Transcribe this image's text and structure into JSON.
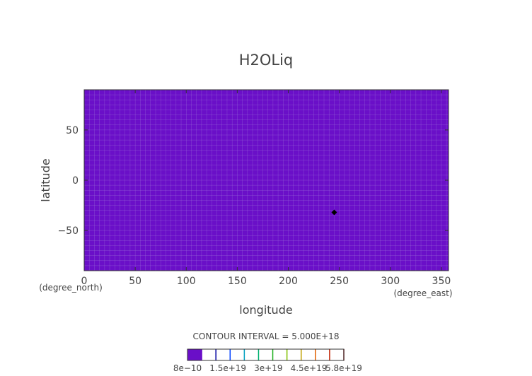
{
  "chart_data": {
    "type": "heatmap",
    "title": "H2OLiq",
    "xlabel": "longitude",
    "ylabel": "latitude",
    "x_units": "(degree_east)",
    "y_units": "(degree_north)",
    "xlim": [
      0,
      357
    ],
    "ylim": [
      -90,
      90
    ],
    "x_ticks": [
      "0",
      "50",
      "100",
      "150",
      "200",
      "250",
      "300",
      "350"
    ],
    "x_tick_values": [
      0,
      50,
      100,
      150,
      200,
      250,
      300,
      350
    ],
    "y_ticks": [
      "50",
      "0",
      "-50"
    ],
    "y_tick_values": [
      50,
      0,
      -50
    ],
    "field_value": 8e-10,
    "field_color": "#6a0fc8",
    "gridline_color": "#a07ad8",
    "point": {
      "x": 245,
      "y": -32
    },
    "contour_interval_text": "CONTOUR INTERVAL = 5.000E+18",
    "colorbar": {
      "labels": [
        "8e−10",
        "1.5e+19",
        "3e+19",
        "4.5e+19",
        "5.8e+19"
      ],
      "label_values": [
        8e-10,
        1.5e+19,
        3e+19,
        4.5e+19,
        5.8e+19
      ],
      "fill_color": "#6a0fc8",
      "line_colors": [
        "#6a0fc8",
        "#0000a0",
        "#0040ff",
        "#00a0c0",
        "#00b070",
        "#20b020",
        "#80c000",
        "#c0a000",
        "#e06000",
        "#c02000",
        "#800000"
      ],
      "range": [
        0,
        5.8e+19
      ]
    }
  }
}
